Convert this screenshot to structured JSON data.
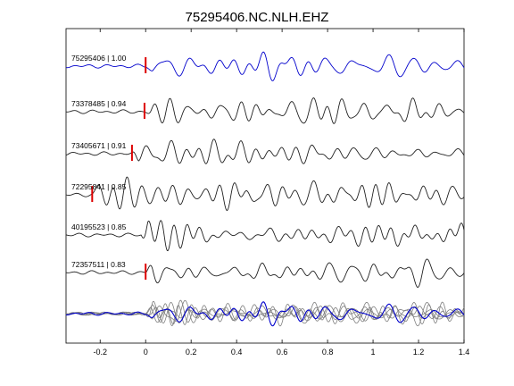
{
  "chart_data": {
    "type": "line",
    "title": "75295406.NC.NLH.EHZ",
    "xlabel": "",
    "ylabel": "",
    "xlim": [
      -0.35,
      1.4
    ],
    "xticks": [
      -0.2,
      0,
      0.2,
      0.4,
      0.6,
      0.8,
      1,
      1.2,
      1.4
    ],
    "xtick_labels": [
      "-0.2",
      "0",
      "0.2",
      "0.4",
      "0.6",
      "0.8",
      "1",
      "1.2",
      "1.4"
    ],
    "grid": false,
    "colors": {
      "reference_trace": "#0000cc",
      "other_traces": "#202020",
      "pick_marker": "#dd0000",
      "stack_traces": "#7f7f7f",
      "stack_reference": "#0000cc"
    },
    "series": [
      {
        "label": "75295406 | 1.00",
        "pick_time": 0.0,
        "reference": true
      },
      {
        "label": "73378485 | 0.94",
        "pick_time": -0.005
      },
      {
        "label": "73405671 | 0.91",
        "pick_time": -0.06
      },
      {
        "label": "72295841 | 0.85",
        "pick_time": -0.235
      },
      {
        "label": "40195523 | 0.85",
        "pick_time": null
      },
      {
        "label": "72357511 | 0.83",
        "pick_time": 0.0
      }
    ]
  }
}
